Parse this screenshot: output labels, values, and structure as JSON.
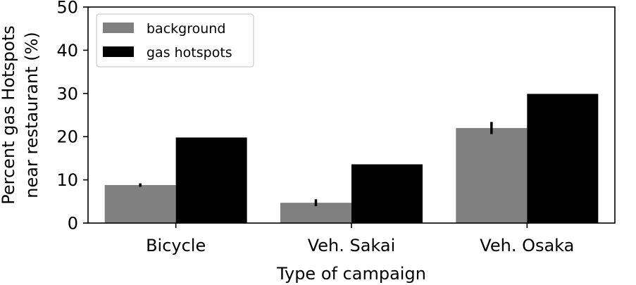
{
  "chart_data": {
    "type": "bar",
    "categories": [
      "Bicycle",
      "Veh. Sakai",
      "Veh. Osaka"
    ],
    "series": [
      {
        "name": "background",
        "values": [
          8.8,
          4.7,
          22.0
        ],
        "error": [
          0.4,
          0.8,
          1.4
        ],
        "color": "#808080"
      },
      {
        "name": "gas hotspots",
        "values": [
          19.8,
          13.6,
          29.9
        ],
        "color": "#000000"
      }
    ],
    "xlabel": "Type of campaign",
    "ylabel_lines": [
      "Percent gas Hotspots",
      "near restaurant (%)"
    ],
    "ylim": [
      0,
      50
    ],
    "yticks": [
      0,
      10,
      20,
      30,
      40,
      50
    ],
    "grid": false,
    "legend_position": "top-left"
  }
}
